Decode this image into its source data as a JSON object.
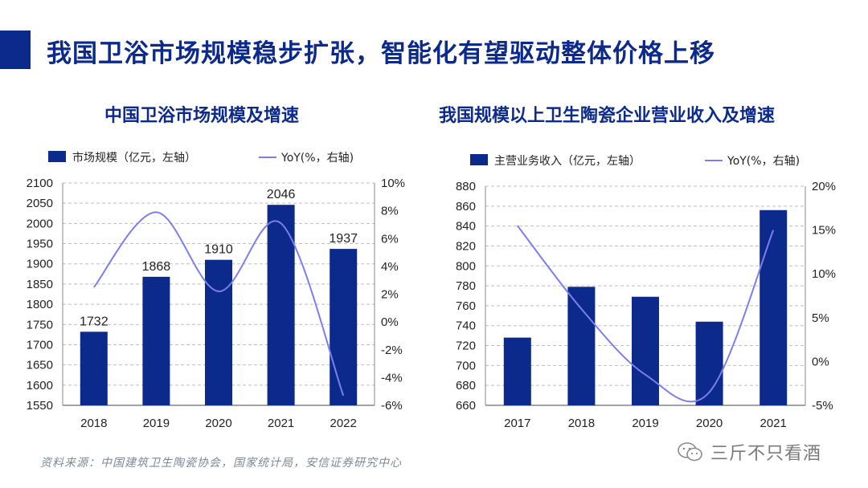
{
  "page_title": "我国卫浴市场规模稳步扩张，智能化有望驱动整体价格上移",
  "colors": {
    "bar": "#0c2a8c",
    "line": "#7b7ef0",
    "title": "#0c2a8c",
    "grid": "#bfbfbf"
  },
  "source_note": "资料来源：中国建筑卫生陶瓷协会，国家统计局，安信证券研究中心",
  "watermark": "三斤不只看酒",
  "chart_data": [
    {
      "type": "bar",
      "title": "中国卫浴市场规模及增速",
      "categories": [
        "2018",
        "2019",
        "2020",
        "2021",
        "2022"
      ],
      "series": [
        {
          "name": "市场规模（亿元，左轴）",
          "type": "bar",
          "axis": "left",
          "values": [
            1732,
            1868,
            1910,
            2046,
            1937
          ]
        },
        {
          "name": "YoY(%，右轴)",
          "type": "line",
          "axis": "right",
          "values": [
            2.5,
            7.9,
            2.2,
            7.1,
            -5.3
          ]
        }
      ],
      "data_labels": [
        "1732",
        "1868",
        "1910",
        "2046",
        "1937"
      ],
      "ylim": [
        1550,
        2100
      ],
      "y_ticks": [
        "1550",
        "1600",
        "1650",
        "1700",
        "1750",
        "1800",
        "1850",
        "1900",
        "1950",
        "2000",
        "2050",
        "2100"
      ],
      "y2lim": [
        -6,
        10
      ],
      "y2_ticks": [
        "-6%",
        "-4%",
        "-2%",
        "0%",
        "2%",
        "4%",
        "6%",
        "8%",
        "10%"
      ],
      "legend_position": "top"
    },
    {
      "type": "bar",
      "title": "我国规模以上卫生陶瓷企业营业收入及增速",
      "categories": [
        "2017",
        "2018",
        "2019",
        "2020",
        "2021"
      ],
      "series": [
        {
          "name": "主营业务收入（亿元，左轴）",
          "type": "bar",
          "axis": "left",
          "values": [
            728,
            779,
            769,
            744,
            856
          ]
        },
        {
          "name": "YoY(%，右轴)",
          "type": "line",
          "axis": "right",
          "values": [
            15.5,
            6.0,
            -1.5,
            -3.5,
            15.0
          ]
        }
      ],
      "ylim": [
        660,
        880
      ],
      "y_ticks": [
        "660",
        "680",
        "700",
        "720",
        "740",
        "760",
        "780",
        "800",
        "820",
        "840",
        "860",
        "880"
      ],
      "y2lim": [
        -5,
        20
      ],
      "y2_ticks": [
        "-5%",
        "0%",
        "5%",
        "10%",
        "15%",
        "20%"
      ],
      "legend_position": "top"
    }
  ]
}
